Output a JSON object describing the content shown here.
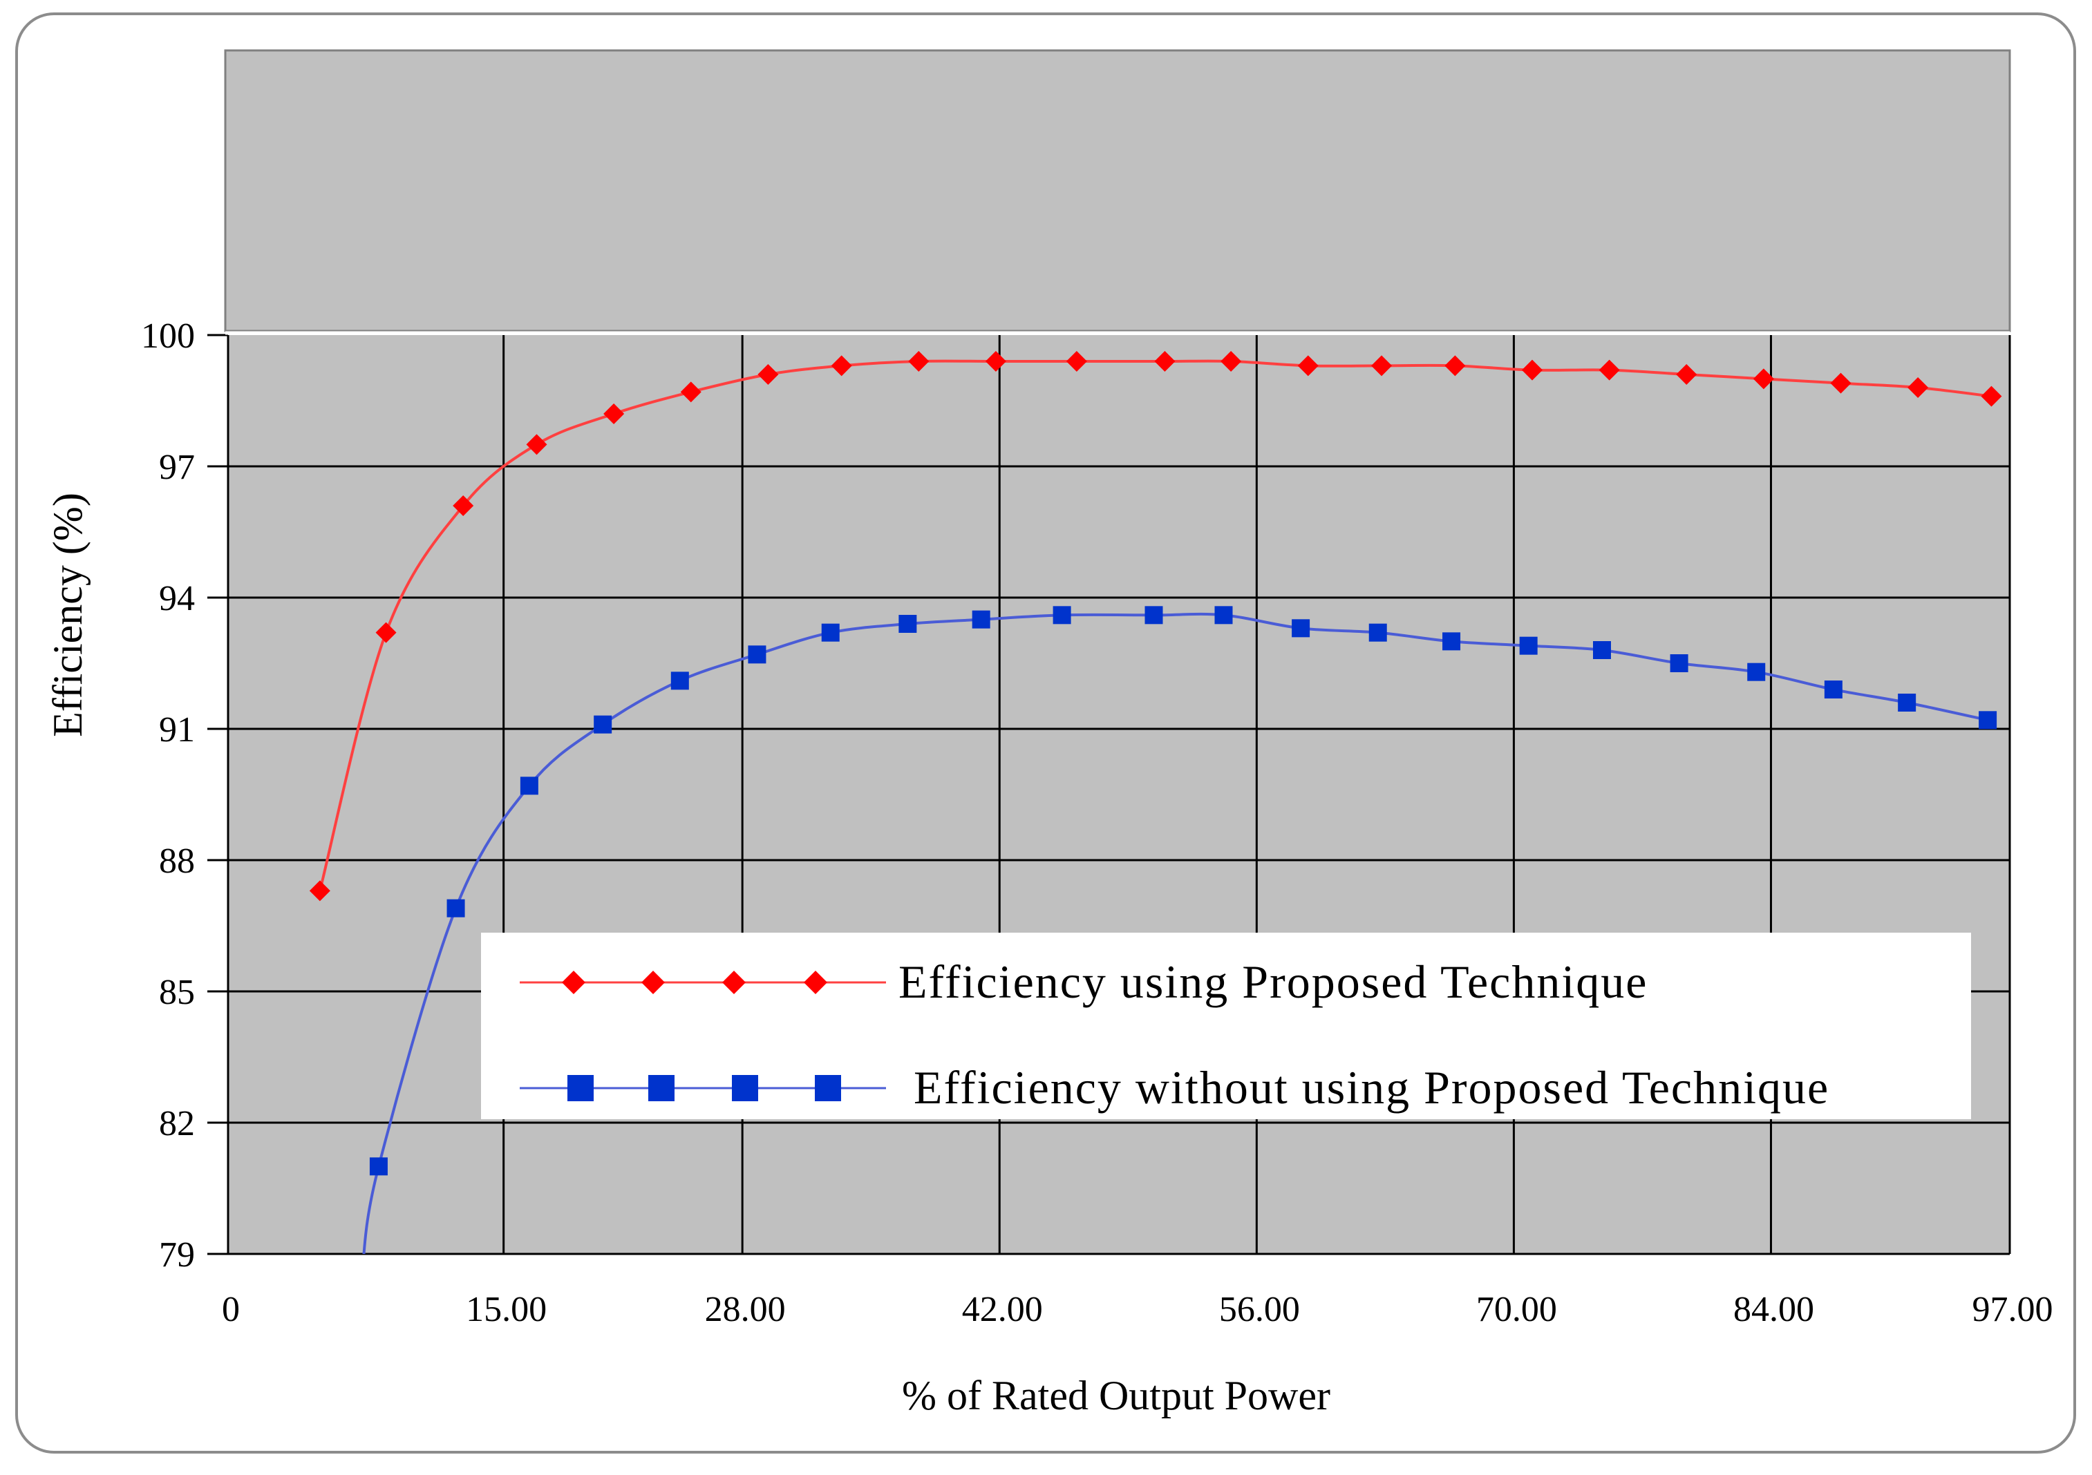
{
  "chart_data": {
    "type": "line",
    "title": "",
    "xlabel": "% of Rated Output Power",
    "ylabel": "Efficiency  (%)",
    "x_ticks": [
      "0",
      "15.00",
      "28.00",
      "42.00",
      "56.00",
      "70.00",
      "84.00",
      "97.00"
    ],
    "y_ticks": [
      "79",
      "82",
      "85",
      "88",
      "91",
      "94",
      "97",
      "100"
    ],
    "ylim": [
      79,
      100
    ],
    "grid": true,
    "legend_position": "center-bottom",
    "series": [
      {
        "name": "Efficiency  using  Proposed  Technique",
        "color": "#ff0000",
        "marker": "diamond",
        "x": [
          5,
          8.6,
          12.8,
          16.8,
          21,
          25.2,
          29.4,
          33.4,
          37.6,
          41.8,
          46.2,
          51,
          54.6,
          58.8,
          62.8,
          66.8,
          71,
          75.2,
          79.4,
          83.6,
          87.8,
          92,
          96
        ],
        "values": [
          87.3,
          93.2,
          96.1,
          97.5,
          98.2,
          98.7,
          99.1,
          99.3,
          99.4,
          99.4,
          99.4,
          99.4,
          99.4,
          99.3,
          99.3,
          99.3,
          99.2,
          99.2,
          99.1,
          99.0,
          98.9,
          98.8,
          98.6
        ]
      },
      {
        "name": "Efficiency  without   using  Proposed  Technique",
        "color": "#0033cc",
        "marker": "square",
        "x": [
          8.2,
          12.4,
          16.4,
          20.4,
          24.6,
          28.8,
          32.8,
          37,
          41,
          45.4,
          50.4,
          54.2,
          58.4,
          62.6,
          66.6,
          70.8,
          74.8,
          79,
          83.2,
          87.4,
          91.4,
          95.8
        ],
        "values": [
          81.0,
          86.9,
          89.7,
          91.1,
          92.1,
          92.7,
          93.2,
          93.4,
          93.5,
          93.6,
          93.6,
          93.6,
          93.3,
          93.2,
          93.0,
          92.9,
          92.8,
          92.5,
          92.3,
          91.9,
          91.6,
          91.2
        ]
      }
    ]
  }
}
